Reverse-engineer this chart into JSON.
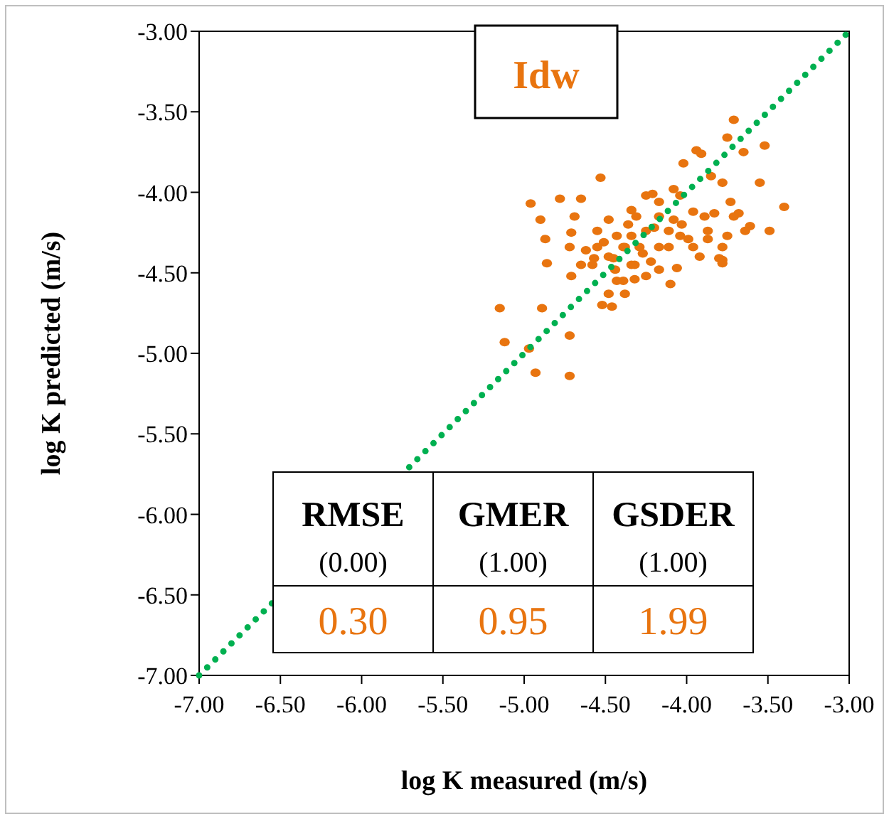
{
  "chart_data": {
    "type": "scatter",
    "title": "Idw",
    "xlabel": "log K measured (m/s)",
    "ylabel": "log K predicted (m/s)",
    "xlim": [
      -7,
      -3
    ],
    "ylim": [
      -7,
      -3
    ],
    "xticks": [
      {
        "value": -7,
        "label": "-7.00"
      },
      {
        "value": -6.5,
        "label": "-6.50"
      },
      {
        "value": -6,
        "label": "-6.00"
      },
      {
        "value": -5.5,
        "label": "-5.50"
      },
      {
        "value": -5,
        "label": "-5.00"
      },
      {
        "value": -4.5,
        "label": "-4.50"
      },
      {
        "value": -4,
        "label": "-4.00"
      },
      {
        "value": -3.5,
        "label": "-3.50"
      },
      {
        "value": -3,
        "label": "-3.00"
      }
    ],
    "yticks": [
      {
        "value": -7,
        "label": "-7.00"
      },
      {
        "value": -6.5,
        "label": "-6.50"
      },
      {
        "value": -6,
        "label": "-6.00"
      },
      {
        "value": -5.5,
        "label": "-5.50"
      },
      {
        "value": -5,
        "label": "-5.00"
      },
      {
        "value": -4.5,
        "label": "-4.50"
      },
      {
        "value": -4,
        "label": "-4.00"
      },
      {
        "value": -3.5,
        "label": "-3.50"
      },
      {
        "value": -3,
        "label": "-3.00"
      }
    ],
    "grid": false,
    "marker": "circle",
    "series": [
      {
        "type": "scatter",
        "color": "#e8740f",
        "x": [
          -3.71,
          -3.75,
          -3.65,
          -3.52,
          -3.94,
          -3.91,
          -4.02,
          -3.85,
          -3.55,
          -3.78,
          -3.4,
          -3.49,
          -3.61,
          -3.73,
          -3.68,
          -3.75,
          -3.78,
          -3.78,
          -3.78,
          -3.89,
          -3.87,
          -3.92,
          -3.96,
          -4.03,
          -4.08,
          -4.04,
          -4.11,
          -4.06,
          -4.1,
          -4.17,
          -4.22,
          -4.21,
          -4.17,
          -4.08,
          -4.04,
          -3.96,
          -4.17,
          -4.2,
          -4.25,
          -4.29,
          -4.34,
          -4.39,
          -4.38,
          -4.48,
          -4.46,
          -4.52,
          -4.65,
          -4.78,
          -4.53,
          -4.96,
          -4.9,
          -4.87,
          -4.86,
          -4.71,
          -4.72,
          -4.71,
          -4.65,
          -4.62,
          -4.55,
          -4.51,
          -4.57,
          -4.48,
          -4.44,
          -4.39,
          -4.36,
          -4.34,
          -4.34,
          -4.31,
          -4.27,
          -4.69,
          -4.25,
          -4.32,
          -4.43,
          -4.17,
          -4.11,
          -3.99,
          -3.87,
          -3.71,
          -3.64,
          -4.55,
          -4.58,
          -4.45,
          -4.32,
          -4.48,
          -4.43,
          -4.38,
          -5.15,
          -4.89,
          -5.12,
          -4.72,
          -4.97,
          -4.93,
          -4.72,
          -4.25,
          -3.83,
          -3.8
        ],
        "values": [
          -3.55,
          -3.66,
          -3.75,
          -3.71,
          -3.74,
          -3.76,
          -3.82,
          -3.9,
          -3.94,
          -3.94,
          -4.09,
          -4.24,
          -4.21,
          -4.06,
          -4.13,
          -4.27,
          -4.34,
          -4.42,
          -4.44,
          -4.15,
          -4.24,
          -4.4,
          -4.34,
          -4.2,
          -4.17,
          -4.27,
          -4.34,
          -4.47,
          -4.57,
          -4.48,
          -4.43,
          -4.01,
          -4.06,
          -3.98,
          -4.02,
          -4.12,
          -4.15,
          -4.22,
          -4.24,
          -4.34,
          -4.45,
          -4.55,
          -4.63,
          -4.63,
          -4.71,
          -4.7,
          -4.04,
          -4.04,
          -3.91,
          -4.07,
          -4.17,
          -4.29,
          -4.44,
          -4.25,
          -4.34,
          -4.52,
          -4.45,
          -4.36,
          -4.24,
          -4.31,
          -4.41,
          -4.4,
          -4.48,
          -4.34,
          -4.2,
          -4.11,
          -4.27,
          -4.15,
          -4.38,
          -4.15,
          -4.52,
          -4.54,
          -4.55,
          -4.34,
          -4.24,
          -4.29,
          -4.29,
          -4.15,
          -4.24,
          -4.34,
          -4.45,
          -4.41,
          -4.45,
          -4.17,
          -4.27,
          -4.34,
          -4.72,
          -4.72,
          -4.93,
          -4.89,
          -4.97,
          -5.12,
          -5.14,
          -4.02,
          -4.13,
          -4.41
        ]
      },
      {
        "type": "line",
        "color": "#00b050",
        "x": [
          -7,
          -3
        ],
        "values": [
          -7,
          -3
        ],
        "line_style": "dotted",
        "marker": "none"
      }
    ],
    "annotations": [
      "RMSE",
      "(0.00)",
      "0.30",
      "GMER",
      "(1.00)",
      "0.95",
      "GSDER",
      "(1.00)",
      "1.99"
    ]
  }
}
